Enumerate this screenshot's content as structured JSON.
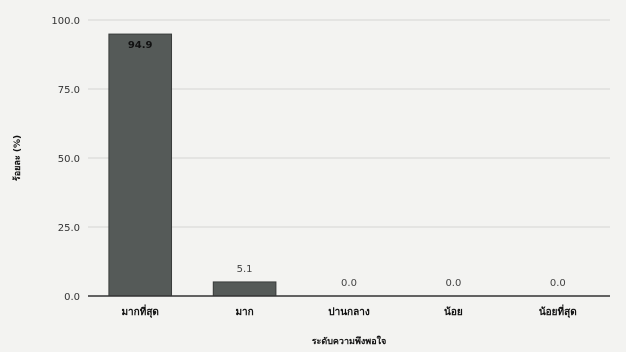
{
  "chart_data": {
    "type": "bar",
    "categories": [
      "มากที่สุด",
      "มาก",
      "ปานกลาง",
      "น้อย",
      "น้อยที่สุด"
    ],
    "values": [
      94.9,
      5.1,
      0.0,
      0.0,
      0.0
    ],
    "value_labels": [
      "94.9",
      "5.1",
      "0.0",
      "0.0",
      "0.0"
    ],
    "xlabel": "ระดับความพึงพอใจ",
    "ylabel": "ร้อยละ (%)",
    "ylim": [
      0,
      100
    ],
    "yticks": [
      "0.0",
      "25.0",
      "50.0",
      "75.0",
      "100.0"
    ],
    "grid": true,
    "bar_color": "#555a58",
    "bar_edge_color": "#3a3d3c"
  }
}
